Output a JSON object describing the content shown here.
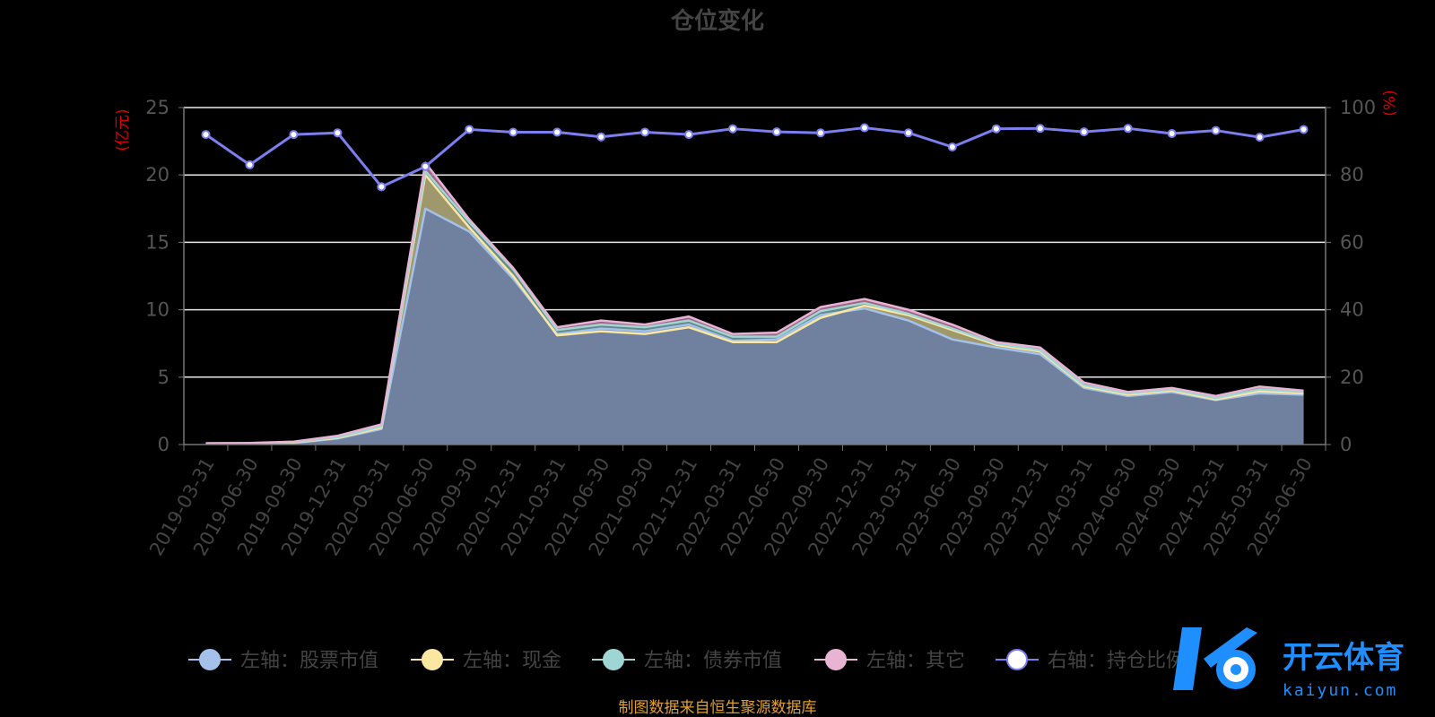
{
  "chart_data": {
    "type": "area",
    "title": "仓位变化",
    "left_axis_unit": "(亿元)",
    "right_axis_unit": "(%)",
    "ylim_left": [
      0,
      25
    ],
    "ylim_right": [
      0,
      100
    ],
    "yticks_left": [
      "0",
      "5",
      "10",
      "15",
      "20",
      "25"
    ],
    "yticks_right": [
      "0",
      "20",
      "40",
      "60",
      "80",
      "100"
    ],
    "grid": true,
    "legend_position": "bottom",
    "categories": [
      "2019-03-31",
      "2019-06-30",
      "2019-09-30",
      "2019-12-31",
      "2020-03-31",
      "2020-06-30",
      "2020-09-30",
      "2020-12-31",
      "2021-03-31",
      "2021-06-30",
      "2021-09-30",
      "2021-12-31",
      "2022-03-31",
      "2022-06-30",
      "2022-09-30",
      "2022-12-31",
      "2023-03-31",
      "2023-06-30",
      "2023-09-30",
      "2023-12-31",
      "2024-03-31",
      "2024-06-30",
      "2024-09-30",
      "2024-12-31",
      "2025-03-31",
      "2025-06-30"
    ],
    "series": [
      {
        "name": "左轴：股票市值",
        "axis": "left",
        "color": "#a3c1ea",
        "values": [
          0.05,
          0.07,
          0.12,
          0.45,
          1.15,
          17.5,
          15.8,
          12.3,
          8.2,
          8.6,
          8.4,
          8.9,
          7.7,
          7.8,
          9.6,
          10.1,
          9.2,
          7.8,
          7.2,
          6.7,
          4.2,
          3.6,
          3.9,
          3.3,
          3.8,
          3.7
        ]
      },
      {
        "name": "左轴：现金",
        "axis": "left",
        "color": "#fbe6a2",
        "values": [
          0.07,
          0.09,
          0.15,
          0.5,
          1.25,
          20.0,
          16.1,
          12.5,
          8.1,
          8.4,
          8.2,
          8.7,
          7.6,
          7.6,
          9.4,
          10.3,
          9.6,
          8.5,
          7.4,
          6.9,
          4.3,
          3.7,
          4.0,
          3.35,
          3.95,
          3.8
        ]
      },
      {
        "name": "左轴：债券市值",
        "axis": "left",
        "color": "#9fd6d3",
        "values": [
          0.08,
          0.1,
          0.18,
          0.55,
          1.35,
          20.3,
          16.5,
          13.0,
          8.5,
          8.9,
          8.7,
          9.2,
          8.0,
          8.0,
          9.9,
          10.5,
          9.7,
          8.6,
          7.5,
          7.0,
          4.4,
          3.8,
          4.1,
          3.45,
          4.1,
          3.9
        ]
      },
      {
        "name": "左轴：其它",
        "axis": "left",
        "color": "#e8b4d4",
        "values": [
          0.1,
          0.12,
          0.22,
          0.65,
          1.5,
          20.9,
          16.7,
          13.1,
          8.7,
          9.2,
          8.9,
          9.5,
          8.2,
          8.3,
          10.2,
          10.8,
          10.0,
          8.9,
          7.6,
          7.2,
          4.6,
          3.9,
          4.2,
          3.6,
          4.3,
          4.0
        ]
      },
      {
        "name": "右轴：持仓比例",
        "axis": "right",
        "color": "#7b7ff0",
        "values": [
          92.0,
          83.0,
          92.0,
          92.5,
          76.5,
          82.5,
          93.5,
          92.7,
          92.7,
          91.3,
          92.7,
          92.0,
          93.7,
          92.8,
          92.5,
          94.0,
          92.5,
          88.3,
          93.7,
          93.8,
          92.8,
          93.8,
          92.3,
          93.2,
          91.2,
          93.5
        ]
      }
    ]
  },
  "footer": {
    "source": "制图数据来自恒生聚源数据库"
  },
  "watermark": {
    "brand_cn": "开云体育",
    "brand_en": "kaiyun.com"
  }
}
